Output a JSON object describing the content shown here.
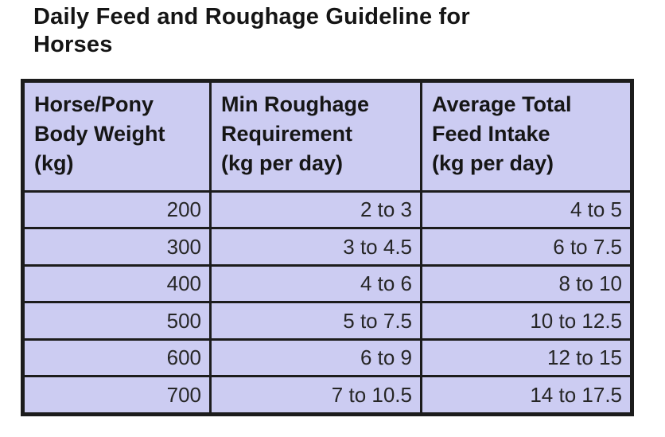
{
  "header": {
    "title": "Daily Feed and Roughage Guideline for Horses",
    "title_lines": [
      "Daily Feed and Roughage Guideline for",
      "Horses"
    ]
  },
  "chart_data": {
    "type": "table",
    "title": "Daily Feed and Roughage Guideline for Horses",
    "columns": [
      {
        "label": "Horse/Pony Body Weight (kg)",
        "lines": [
          "Horse/Pony",
          "Body Weight",
          "(kg)"
        ]
      },
      {
        "label": "Min Roughage Requirement (kg per day)",
        "lines": [
          "Min Roughage",
          "Requirement",
          "(kg per day)"
        ]
      },
      {
        "label": "Average Total Feed Intake (kg per day)",
        "lines": [
          "Average Total",
          "Feed Intake",
          "(kg per day)"
        ]
      }
    ],
    "rows": [
      [
        "200",
        "2 to 3",
        "4 to 5"
      ],
      [
        "300",
        "3 to 4.5",
        "6 to 7.5"
      ],
      [
        "400",
        "4 to 6",
        "8 to 10"
      ],
      [
        "500",
        "5 to 7.5",
        "10 to 12.5"
      ],
      [
        "600",
        "6 to 9",
        "12 to 15"
      ],
      [
        "700",
        "7 to 10.5",
        "14 to 17.5"
      ]
    ],
    "body_weights_kg": [
      200,
      300,
      400,
      500,
      600,
      700
    ],
    "min_roughage_kg_per_day_ranges": [
      [
        2,
        3
      ],
      [
        3,
        4.5
      ],
      [
        4,
        6
      ],
      [
        5,
        7.5
      ],
      [
        6,
        9
      ],
      [
        7,
        10.5
      ]
    ],
    "avg_total_feed_kg_per_day_ranges": [
      [
        4,
        5
      ],
      [
        6,
        7.5
      ],
      [
        8,
        10
      ],
      [
        10,
        12.5
      ],
      [
        12,
        15
      ],
      [
        14,
        17.5
      ]
    ]
  },
  "colors": {
    "cell_background": "#ccccf2",
    "grid_border": "#1c1c1c",
    "text": "#161616",
    "page_background": "#ffffff"
  }
}
